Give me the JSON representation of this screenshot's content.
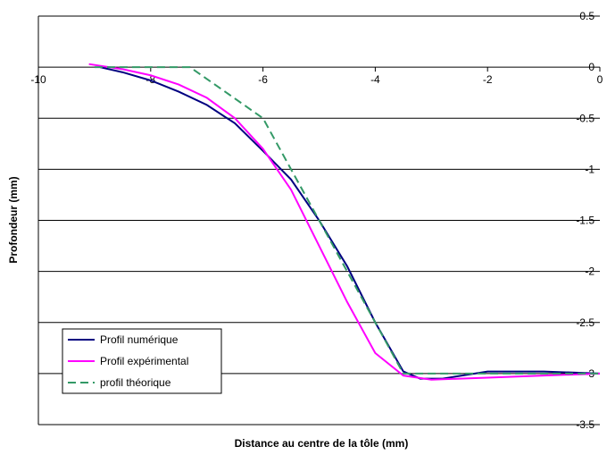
{
  "chart_data": {
    "type": "line",
    "xlabel": "Distance au centre de la tôle (mm)",
    "ylabel": "Profondeur (mm)",
    "xlim": [
      -10,
      0
    ],
    "ylim": [
      -3.5,
      0.5
    ],
    "xticks": [
      -10,
      -8,
      -6,
      -4,
      -2,
      0
    ],
    "yticks": [
      0.5,
      0,
      -0.5,
      -1,
      -1.5,
      -2,
      -2.5,
      -3,
      -3.5
    ],
    "grid": true,
    "legend": "lower left",
    "series": [
      {
        "name": "Profil numérique",
        "color": "#000080",
        "dash": false,
        "x": [
          -8.9,
          -8.5,
          -8,
          -7.5,
          -7,
          -6.5,
          -6,
          -5.5,
          -5,
          -4.5,
          -4,
          -3.5,
          -3.2,
          -2.8,
          -2,
          -1,
          0
        ],
        "values": [
          0,
          -0.05,
          -0.13,
          -0.24,
          -0.37,
          -0.55,
          -0.82,
          -1.1,
          -1.5,
          -1.95,
          -2.5,
          -2.98,
          -3.05,
          -3.05,
          -2.98,
          -2.98,
          -3.0
        ]
      },
      {
        "name": "Profil expérimental",
        "color": "#ff00ff",
        "dash": false,
        "x": [
          -9.1,
          -8.5,
          -8,
          -7.5,
          -7,
          -6.5,
          -6,
          -5.5,
          -5,
          -4.5,
          -4,
          -3.5,
          -3,
          -2,
          -1,
          0
        ],
        "values": [
          0.03,
          -0.02,
          -0.08,
          -0.17,
          -0.3,
          -0.5,
          -0.8,
          -1.2,
          -1.75,
          -2.3,
          -2.8,
          -3.02,
          -3.06,
          -3.04,
          -3.02,
          -3.0
        ]
      },
      {
        "name": "profil théorique",
        "color": "#339966",
        "dash": true,
        "x": [
          -9,
          -7.3,
          -6,
          -3.5,
          0
        ],
        "values": [
          0,
          0,
          -0.5,
          -3.0,
          -3.0
        ]
      }
    ]
  }
}
